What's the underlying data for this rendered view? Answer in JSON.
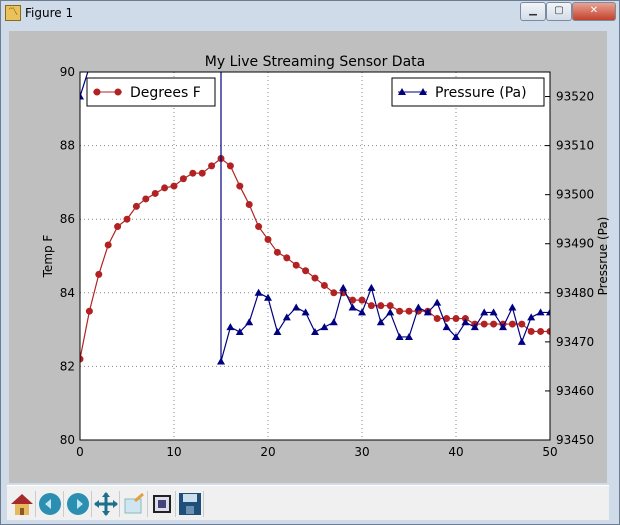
{
  "window": {
    "title": "Figure 1",
    "minimize_icon": "minimize-icon",
    "maximize_icon": "maximize-icon",
    "close_icon": "close-icon"
  },
  "toolbar": {
    "buttons": [
      "home-icon",
      "back-icon",
      "forward-icon",
      "pan-icon",
      "zoom-icon",
      "subplots-icon",
      "save-icon"
    ]
  },
  "chart_data": {
    "type": "line",
    "title": "My Live Streaming Sensor Data",
    "xlim": [
      0,
      50
    ],
    "xticks": [
      0,
      10,
      20,
      30,
      40,
      50
    ],
    "grid": true,
    "x": [
      0,
      1,
      2,
      3,
      4,
      5,
      6,
      7,
      8,
      9,
      10,
      11,
      12,
      13,
      14,
      15,
      16,
      17,
      18,
      19,
      20,
      21,
      22,
      23,
      24,
      25,
      26,
      27,
      28,
      29,
      30,
      31,
      32,
      33,
      34,
      35,
      36,
      37,
      38,
      39,
      40,
      41,
      42,
      43,
      44,
      45,
      46,
      47,
      48,
      49,
      50
    ],
    "left_axis": {
      "label": "Temp F",
      "ylim": [
        80,
        90
      ],
      "yticks": [
        80,
        82,
        84,
        86,
        88,
        90
      ]
    },
    "right_axis": {
      "label": "Pressrue (Pa)",
      "ylim": [
        93450,
        93525
      ],
      "yticks": [
        93450,
        93460,
        93470,
        93480,
        93490,
        93500,
        93510,
        93520
      ]
    },
    "series": [
      {
        "name": "Degrees F",
        "axis": "left",
        "color": "#b22222",
        "marker": "circle",
        "legend": "top-left",
        "values": [
          82.2,
          83.5,
          84.5,
          85.3,
          85.8,
          86.0,
          86.35,
          86.55,
          86.7,
          86.85,
          86.9,
          87.1,
          87.25,
          87.25,
          87.45,
          87.65,
          87.45,
          86.9,
          86.4,
          85.8,
          85.45,
          85.1,
          84.95,
          84.75,
          84.6,
          84.4,
          84.2,
          84.0,
          84.0,
          83.8,
          83.8,
          83.65,
          83.65,
          83.65,
          83.5,
          83.5,
          83.5,
          83.5,
          83.3,
          83.3,
          83.3,
          83.3,
          83.15,
          83.15,
          83.15,
          83.15,
          83.15,
          83.15,
          82.95,
          82.95,
          82.95
        ]
      },
      {
        "name": "Pressure (Pa)",
        "axis": "right",
        "color": "#000080",
        "marker": "triangle",
        "legend": "top-right",
        "values": [
          93520,
          null,
          null,
          null,
          null,
          null,
          null,
          null,
          null,
          null,
          null,
          null,
          null,
          null,
          null,
          93466,
          93473,
          93472,
          93474,
          93480,
          93479,
          93472,
          93475,
          93477,
          93476,
          93472,
          93473,
          93474,
          93481,
          93477,
          93476,
          93481,
          93474,
          93476,
          93471,
          93471,
          93477,
          93476,
          93478,
          93473,
          93471,
          93474,
          93473,
          93476,
          93476,
          93473,
          93477,
          93470,
          93475,
          93476,
          93476
        ]
      }
    ]
  }
}
